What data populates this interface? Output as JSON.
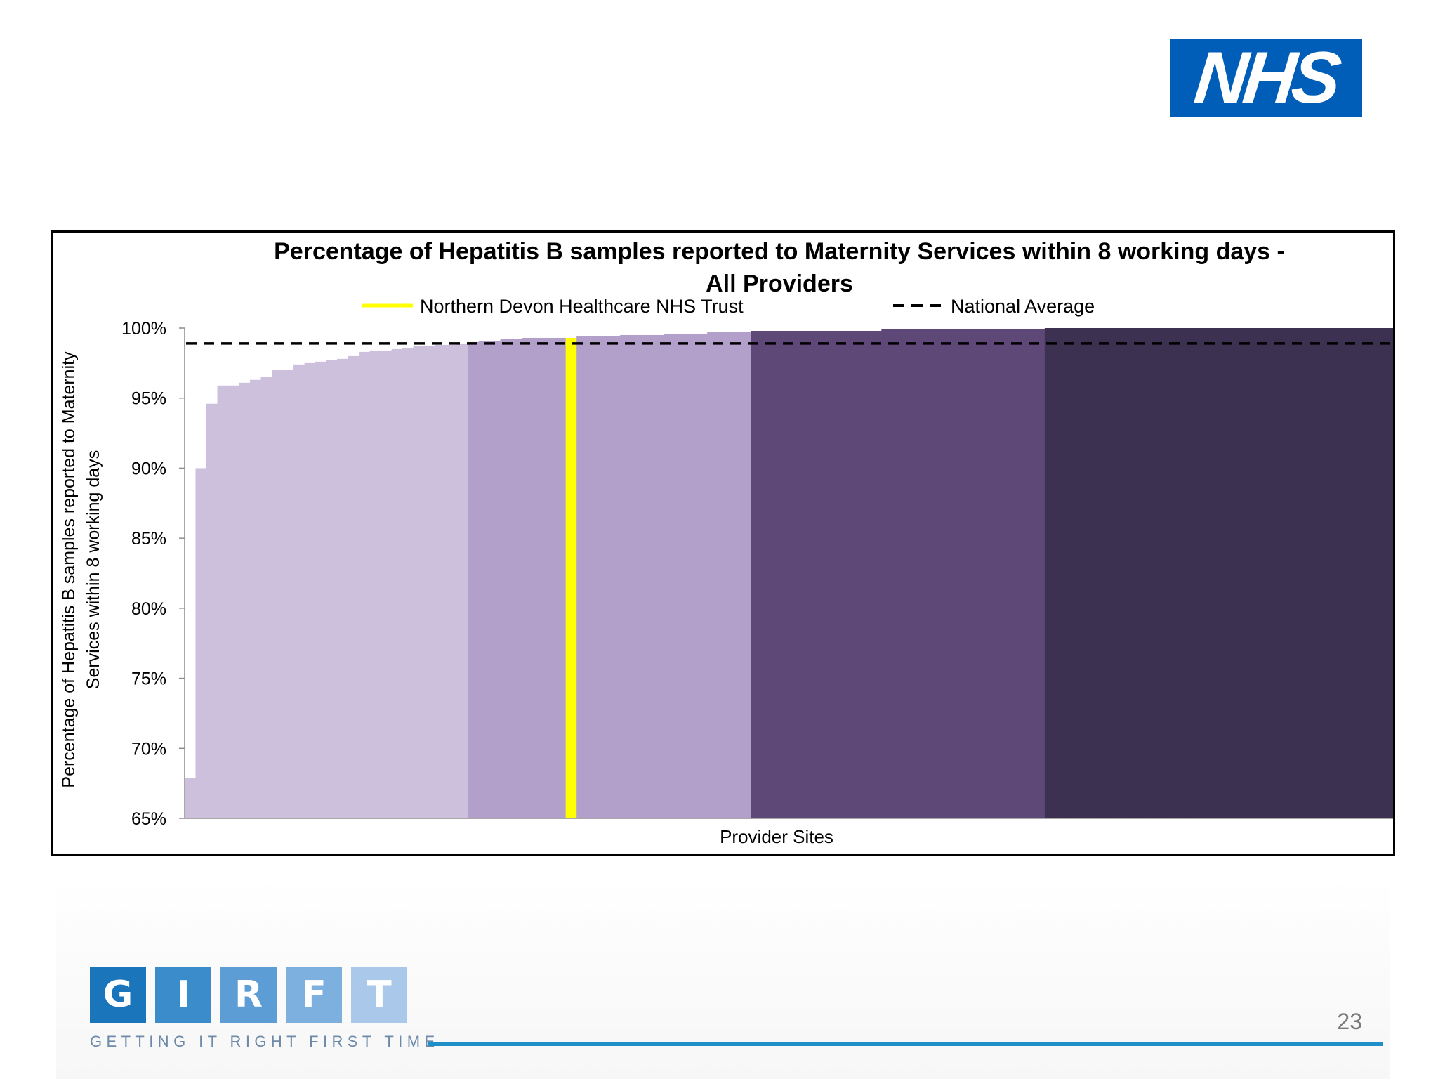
{
  "logo": {
    "text": "NHS",
    "color": "#005eb8"
  },
  "chart_data": {
    "type": "bar",
    "title_line1": "Percentage of Hepatitis B samples reported to Maternity Services within 8 working days -",
    "title_line2": "All Providers",
    "xlabel": "Provider Sites",
    "ylabel_line1": "Percentage of Hepatitis B samples reported to Maternity",
    "ylabel_line2": "Services within 8 working days",
    "ylim": [
      65,
      100
    ],
    "yticks": [
      "100%",
      "95%",
      "90%",
      "85%",
      "80%",
      "75%",
      "70%",
      "65%"
    ],
    "ytick_values": [
      100,
      95,
      90,
      85,
      80,
      75,
      70,
      65
    ],
    "legend": {
      "position": "top",
      "entries": [
        {
          "label": "Northern Devon Healthcare NHS Trust",
          "style": "solid",
          "color": "#ffff00"
        },
        {
          "label": "National Average",
          "style": "dashed",
          "color": "#000000"
        }
      ]
    },
    "national_average": 98.9,
    "highlight": {
      "name": "Northern Devon Healthcare NHS Trust",
      "site_index": 35,
      "value": 99.3
    },
    "quartile_colors": [
      "#ccc0dc",
      "#b3a0ca",
      "#5e4878",
      "#3c3150"
    ],
    "quartile_counts": [
      26,
      26,
      27,
      32
    ],
    "values": [
      67.9,
      90.0,
      94.6,
      95.9,
      95.9,
      96.1,
      96.3,
      96.5,
      97.0,
      97.0,
      97.4,
      97.5,
      97.6,
      97.7,
      97.8,
      98.0,
      98.3,
      98.4,
      98.4,
      98.5,
      98.6,
      98.7,
      98.7,
      98.8,
      98.8,
      98.9,
      99.0,
      99.1,
      99.1,
      99.2,
      99.2,
      99.3,
      99.3,
      99.3,
      99.3,
      99.3,
      99.4,
      99.4,
      99.4,
      99.4,
      99.5,
      99.5,
      99.5,
      99.5,
      99.6,
      99.6,
      99.6,
      99.6,
      99.7,
      99.7,
      99.7,
      99.7,
      99.8,
      99.8,
      99.8,
      99.8,
      99.8,
      99.8,
      99.8,
      99.8,
      99.8,
      99.8,
      99.8,
      99.8,
      99.9,
      99.9,
      99.9,
      99.9,
      99.9,
      99.9,
      99.9,
      99.9,
      99.9,
      99.9,
      99.9,
      99.9,
      99.9,
      99.9,
      99.9,
      100,
      100,
      100,
      100,
      100,
      100,
      100,
      100,
      100,
      100,
      100,
      100,
      100,
      100,
      100,
      100,
      100,
      100,
      100,
      100,
      100,
      100,
      100,
      100,
      100,
      100,
      100,
      100,
      100,
      100,
      100,
      100
    ]
  },
  "footer": {
    "girft_letters": [
      "G",
      "I",
      "R",
      "F",
      "T"
    ],
    "girft_colors": [
      "#1b75bb",
      "#3a8ccb",
      "#5b9dd4",
      "#7eb0df",
      "#a9c8ea"
    ],
    "tagline": "GETTING IT RIGHT FIRST TIME",
    "page_number": "23"
  }
}
